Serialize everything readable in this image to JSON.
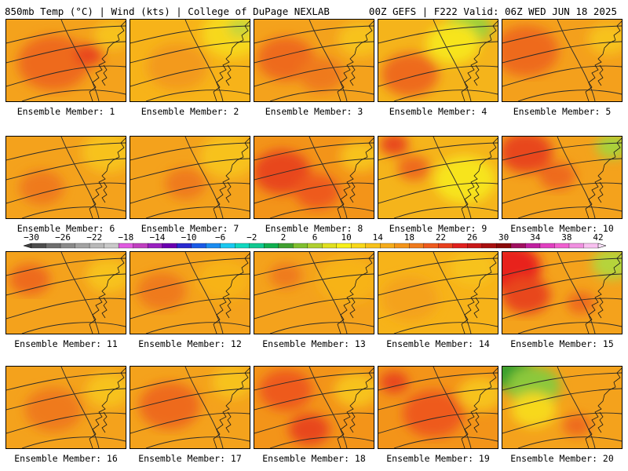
{
  "header": {
    "left": "850mb Temp (°C) | Wind (kts) | College of DuPage NEXLAB",
    "right": "00Z GEFS | F222 Valid: 06Z WED JUN 18 2025"
  },
  "panels": [
    {
      "label": "Ensemble Member: 1",
      "base": "#f4a21c",
      "blobs": [
        {
          "c": "#ee6a1e",
          "x": 60,
          "y": 55,
          "r": 35
        },
        {
          "c": "#e8461e",
          "x": 105,
          "y": 45,
          "r": 14
        },
        {
          "c": "#f7c21a",
          "x": 135,
          "y": 20,
          "r": 18
        }
      ]
    },
    {
      "label": "Ensemble Member: 2",
      "base": "#f7b319",
      "blobs": [
        {
          "c": "#f7d81a",
          "x": 130,
          "y": 18,
          "r": 30
        },
        {
          "c": "#c3d63a",
          "x": 140,
          "y": 10,
          "r": 12
        },
        {
          "c": "#f39a1b",
          "x": 60,
          "y": 60,
          "r": 30
        }
      ]
    },
    {
      "label": "Ensemble Member: 3",
      "base": "#f4a21c",
      "blobs": [
        {
          "c": "#ee6a1e",
          "x": 40,
          "y": 50,
          "r": 28
        },
        {
          "c": "#f7c21a",
          "x": 135,
          "y": 25,
          "r": 22
        },
        {
          "c": "#ef7a1d",
          "x": 85,
          "y": 70,
          "r": 22
        }
      ]
    },
    {
      "label": "Ensemble Member: 4",
      "base": "#f5b41b",
      "blobs": [
        {
          "c": "#9ccf3a",
          "x": 115,
          "y": 10,
          "r": 22
        },
        {
          "c": "#f7e41a",
          "x": 95,
          "y": 30,
          "r": 26
        },
        {
          "c": "#ee6a1e",
          "x": 40,
          "y": 70,
          "r": 28
        }
      ]
    },
    {
      "label": "Ensemble Member: 5",
      "base": "#f4a01c",
      "blobs": [
        {
          "c": "#ee6a1e",
          "x": 30,
          "y": 40,
          "r": 32
        },
        {
          "c": "#f7c21a",
          "x": 135,
          "y": 25,
          "r": 20
        }
      ]
    },
    {
      "label": "Ensemble Member: 6",
      "base": "#f4a21c",
      "blobs": [
        {
          "c": "#f7c21a",
          "x": 130,
          "y": 20,
          "r": 26
        },
        {
          "c": "#ef7a1d",
          "x": 45,
          "y": 65,
          "r": 22
        }
      ]
    },
    {
      "label": "Ensemble Member: 7",
      "base": "#f4a21c",
      "blobs": [
        {
          "c": "#f7c21a",
          "x": 125,
          "y": 25,
          "r": 28
        },
        {
          "c": "#ef7a1d",
          "x": 70,
          "y": 60,
          "r": 20
        }
      ]
    },
    {
      "label": "Ensemble Member: 8",
      "base": "#f39419",
      "blobs": [
        {
          "c": "#e8461e",
          "x": 35,
          "y": 45,
          "r": 28
        },
        {
          "c": "#ee5a1e",
          "x": 80,
          "y": 70,
          "r": 22
        },
        {
          "c": "#f7c21a",
          "x": 135,
          "y": 25,
          "r": 20
        }
      ]
    },
    {
      "label": "Ensemble Member: 9",
      "base": "#f5b41b",
      "blobs": [
        {
          "c": "#f7e41a",
          "x": 110,
          "y": 55,
          "r": 30
        },
        {
          "c": "#e8461e",
          "x": 20,
          "y": 10,
          "r": 14
        },
        {
          "c": "#ee6a1e",
          "x": 45,
          "y": 40,
          "r": 16
        }
      ]
    },
    {
      "label": "Ensemble Member: 10",
      "base": "#f4a21c",
      "blobs": [
        {
          "c": "#e8461e",
          "x": 30,
          "y": 20,
          "r": 26
        },
        {
          "c": "#ee6a1e",
          "x": 70,
          "y": 50,
          "r": 18
        },
        {
          "c": "#a8d23a",
          "x": 140,
          "y": 12,
          "r": 16
        }
      ]
    },
    {
      "label": "Ensemble Member: 11",
      "base": "#f4a21c",
      "blobs": [
        {
          "c": "#ee6a1e",
          "x": 30,
          "y": 35,
          "r": 20
        },
        {
          "c": "#f7c21a",
          "x": 130,
          "y": 30,
          "r": 22
        }
      ]
    },
    {
      "label": "Ensemble Member: 12",
      "base": "#f4a21c",
      "blobs": [
        {
          "c": "#ef7a1d",
          "x": 40,
          "y": 50,
          "r": 24
        },
        {
          "c": "#f7b319",
          "x": 120,
          "y": 35,
          "r": 26
        }
      ]
    },
    {
      "label": "Ensemble Member: 13",
      "base": "#f4a21c",
      "blobs": [
        {
          "c": "#f7b319",
          "x": 120,
          "y": 35,
          "r": 30
        },
        {
          "c": "#ef7a1d",
          "x": 40,
          "y": 30,
          "r": 16
        }
      ]
    },
    {
      "label": "Ensemble Member: 14",
      "base": "#f7b319",
      "blobs": [
        {
          "c": "#f4a21c",
          "x": 40,
          "y": 60,
          "r": 28
        },
        {
          "c": "#f7c21a",
          "x": 120,
          "y": 20,
          "r": 22
        }
      ]
    },
    {
      "label": "Ensemble Member: 15",
      "base": "#f4a21c",
      "blobs": [
        {
          "c": "#e8201e",
          "x": 10,
          "y": 20,
          "r": 30
        },
        {
          "c": "#e8461e",
          "x": 30,
          "y": 55,
          "r": 24
        },
        {
          "c": "#b5d43a",
          "x": 140,
          "y": 15,
          "r": 20
        },
        {
          "c": "#ee6a1e",
          "x": 100,
          "y": 65,
          "r": 14
        }
      ]
    },
    {
      "label": "Ensemble Member: 16",
      "base": "#f4a21c",
      "blobs": [
        {
          "c": "#ef7a1d",
          "x": 60,
          "y": 55,
          "r": 28
        },
        {
          "c": "#f7c21a",
          "x": 130,
          "y": 30,
          "r": 22
        }
      ]
    },
    {
      "label": "Ensemble Member: 17",
      "base": "#f4a21c",
      "blobs": [
        {
          "c": "#ee6a1e",
          "x": 50,
          "y": 50,
          "r": 30
        },
        {
          "c": "#f7c21a",
          "x": 130,
          "y": 20,
          "r": 20
        }
      ]
    },
    {
      "label": "Ensemble Member: 18",
      "base": "#f39419",
      "blobs": [
        {
          "c": "#ee5a1e",
          "x": 40,
          "y": 30,
          "r": 26
        },
        {
          "c": "#e8461e",
          "x": 70,
          "y": 80,
          "r": 20
        },
        {
          "c": "#f7c21a",
          "x": 130,
          "y": 30,
          "r": 22
        }
      ]
    },
    {
      "label": "Ensemble Member: 19",
      "base": "#f39419",
      "blobs": [
        {
          "c": "#ee5a1e",
          "x": 70,
          "y": 60,
          "r": 30
        },
        {
          "c": "#e8461e",
          "x": 20,
          "y": 20,
          "r": 14
        },
        {
          "c": "#f7c21a",
          "x": 130,
          "y": 35,
          "r": 22
        }
      ]
    },
    {
      "label": "Ensemble Member: 20",
      "base": "#f4a21c",
      "blobs": [
        {
          "c": "#2f9e2f",
          "x": 15,
          "y": 10,
          "r": 22
        },
        {
          "c": "#8cc83a",
          "x": 40,
          "y": 25,
          "r": 26
        },
        {
          "c": "#f7d81a",
          "x": 40,
          "y": 55,
          "r": 22
        },
        {
          "c": "#ee6a1e",
          "x": 95,
          "y": 75,
          "r": 14
        }
      ]
    }
  ],
  "colorbar": {
    "labels": [
      "−30",
      "−26",
      "−22",
      "−18",
      "−14",
      "−10",
      "−6",
      "−2",
      "2",
      "6",
      "10",
      "14",
      "18",
      "22",
      "26",
      "30",
      "34",
      "38",
      "42"
    ],
    "colors": [
      "#4d4d4d",
      "#6e6e6e",
      "#8a8a8a",
      "#a3a3a3",
      "#b9b9b9",
      "#c9c9c9",
      "#e05ae0",
      "#c040c0",
      "#9a20c0",
      "#6a00b0",
      "#2a2ad0",
      "#1a5ae6",
      "#1a8cf0",
      "#1ac8f0",
      "#10d8c0",
      "#10c890",
      "#10b050",
      "#40a030",
      "#80c030",
      "#b0d030",
      "#e0e020",
      "#f7f01a",
      "#f8d81a",
      "#f7c21a",
      "#f5ac1b",
      "#f39419",
      "#ef7a1d",
      "#ee5a1e",
      "#e8401e",
      "#e0201e",
      "#c81818",
      "#a81010",
      "#8a0a0a",
      "#a01060",
      "#c020a0",
      "#e040c0",
      "#f060d0",
      "#f090e0",
      "#f8c0f0"
    ]
  }
}
